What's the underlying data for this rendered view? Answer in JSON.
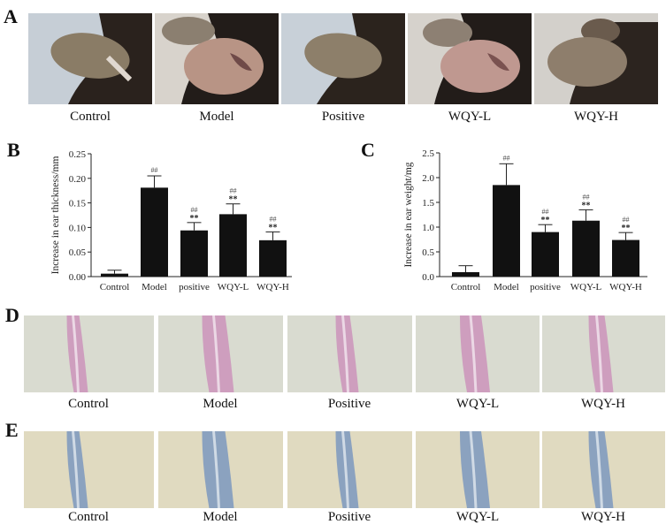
{
  "panels": {
    "A": {
      "letter": "A",
      "labels": [
        "Control",
        "Model",
        "Positive",
        "WQY-L",
        "WQY-H"
      ]
    },
    "B": {
      "letter": "B"
    },
    "C": {
      "letter": "C"
    },
    "D": {
      "letter": "D",
      "labels": [
        "Control",
        "Model",
        "Positive",
        "WQY-L",
        "WQY-H"
      ]
    },
    "E": {
      "letter": "E",
      "labels": [
        "Control",
        "Model",
        "Positive",
        "WQY-L",
        "WQY-H"
      ]
    }
  },
  "colors": {
    "bar": "#111111",
    "he_stain_bg": "#d9dbd0",
    "he_stain_tissue": "#c98ab8",
    "toluidine_bg": "#e0dac0",
    "toluidine_tissue": "#6f8fbf"
  },
  "chart_data": [
    {
      "panel": "B",
      "type": "bar",
      "title": "",
      "xlabel": "",
      "ylabel": "Increase in ear thickness/mm",
      "categories": [
        "Control",
        "Model",
        "positive",
        "WQY-L",
        "WQY-H"
      ],
      "values": [
        0.006,
        0.181,
        0.094,
        0.127,
        0.074
      ],
      "error_upper": [
        0.013,
        0.205,
        0.11,
        0.148,
        0.091
      ],
      "annotations": [
        "",
        "##",
        "##\n**",
        "##\n**",
        "##\n**"
      ],
      "ylim": [
        0,
        0.25
      ],
      "yticks": [
        "0.00",
        "0.05",
        "0.10",
        "0.15",
        "0.20",
        "0.25"
      ],
      "grid": false
    },
    {
      "panel": "C",
      "type": "bar",
      "title": "",
      "xlabel": "",
      "ylabel": "Increase in ear weight/mg",
      "categories": [
        "Control",
        "Model",
        "positive",
        "WQY-L",
        "WQY-H"
      ],
      "values": [
        0.09,
        1.85,
        0.9,
        1.13,
        0.74
      ],
      "error_upper": [
        0.22,
        2.28,
        1.05,
        1.35,
        0.89
      ],
      "annotations": [
        "",
        "##",
        "##\n**",
        "##\n**",
        "##\n**"
      ],
      "ylim": [
        0,
        2.5
      ],
      "yticks": [
        "0.0",
        "0.5",
        "1.0",
        "1.5",
        "2.0",
        "2.5"
      ],
      "grid": false
    }
  ]
}
